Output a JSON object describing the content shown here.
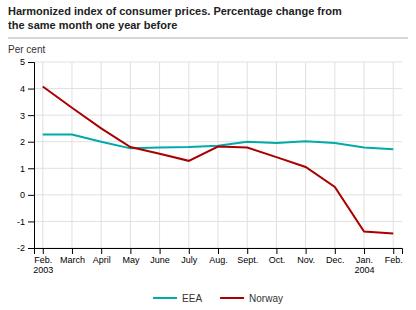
{
  "chart_data": {
    "type": "line",
    "title": "Harmonized index of consumer prices. Percentage change from\nthe same month one year before",
    "y_label": "Per cent",
    "categories": [
      "Feb.\n2003",
      "March",
      "April",
      "May",
      "June",
      "July",
      "Aug.",
      "Sept.",
      "Oct.",
      "Nov.",
      "Dec.",
      "Jan.\n2004",
      "Feb."
    ],
    "series": [
      {
        "name": "EEA",
        "color": "#00AAAA",
        "values": [
          2.27,
          2.27,
          2.0,
          1.75,
          1.78,
          1.8,
          1.85,
          2.0,
          1.95,
          2.02,
          1.95,
          1.78,
          1.72
        ]
      },
      {
        "name": "Norway",
        "color": "#AA0000",
        "values": [
          4.08,
          3.28,
          2.5,
          1.8,
          1.55,
          1.28,
          1.82,
          1.78,
          1.42,
          1.05,
          0.3,
          -1.38,
          -1.45
        ]
      }
    ],
    "ylim": [
      -2,
      5
    ],
    "yticks": [
      -2,
      -1,
      0,
      1,
      2,
      3,
      4,
      5
    ],
    "grid": true,
    "legend": "bottom"
  }
}
